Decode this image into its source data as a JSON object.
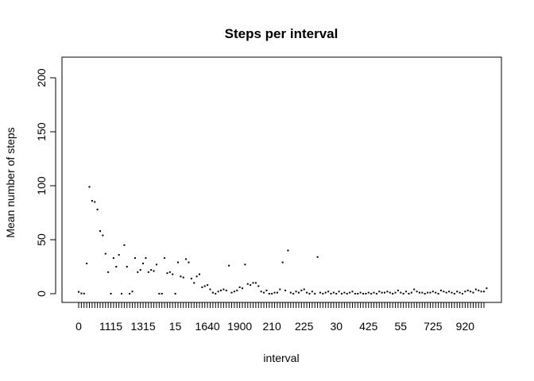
{
  "chart_data": {
    "type": "scatter",
    "title": "Steps per interval",
    "xlabel": "interval",
    "ylabel": "Mean number of steps",
    "ylim": [
      0,
      210
    ],
    "y_ticks": [
      0,
      50,
      100,
      150,
      200
    ],
    "x_ticks": [
      {
        "index": 1,
        "label": "0"
      },
      {
        "index": 13,
        "label": "1115"
      },
      {
        "index": 25,
        "label": "1315"
      },
      {
        "index": 37,
        "label": "15"
      },
      {
        "index": 49,
        "label": "1640"
      },
      {
        "index": 61,
        "label": "1900"
      },
      {
        "index": 73,
        "label": "210"
      },
      {
        "index": 85,
        "label": "225"
      },
      {
        "index": 97,
        "label": "30"
      },
      {
        "index": 109,
        "label": "425"
      },
      {
        "index": 121,
        "label": "55"
      },
      {
        "index": 133,
        "label": "725"
      },
      {
        "index": 145,
        "label": "920"
      }
    ],
    "n_categories": 152,
    "grid": false,
    "values": [
      1.7,
      0.3,
      0.1,
      28,
      99,
      86,
      85,
      78,
      58,
      54,
      37,
      20,
      0,
      33,
      25,
      36,
      0,
      45,
      25,
      0,
      2,
      33,
      20,
      22,
      28,
      33,
      20,
      22,
      21,
      27,
      0,
      0,
      33,
      19,
      20,
      18,
      0,
      29,
      16,
      15,
      32,
      29,
      14,
      10,
      16,
      18,
      6,
      7,
      8,
      4,
      1,
      0,
      2,
      3,
      4,
      3,
      26,
      1,
      2,
      3,
      6,
      5,
      27,
      9,
      8,
      10,
      10,
      7,
      2,
      1,
      3,
      0,
      0,
      1,
      1,
      4,
      29,
      3,
      40,
      1,
      0,
      2,
      1,
      3,
      4,
      1,
      0,
      2,
      0,
      34,
      1,
      0,
      1,
      2,
      0,
      1,
      0,
      2,
      0,
      1,
      0,
      1,
      2,
      0,
      0,
      1,
      0,
      0,
      1,
      0,
      1,
      0,
      2,
      1,
      1,
      2,
      1,
      0,
      1,
      3,
      1,
      0,
      2,
      0,
      1,
      4,
      2,
      1,
      1,
      0,
      1,
      1,
      2,
      1,
      0,
      3,
      2,
      1,
      2,
      1,
      0,
      2,
      1,
      0,
      2,
      3,
      2,
      1,
      4,
      3,
      2,
      2,
      5
    ]
  }
}
